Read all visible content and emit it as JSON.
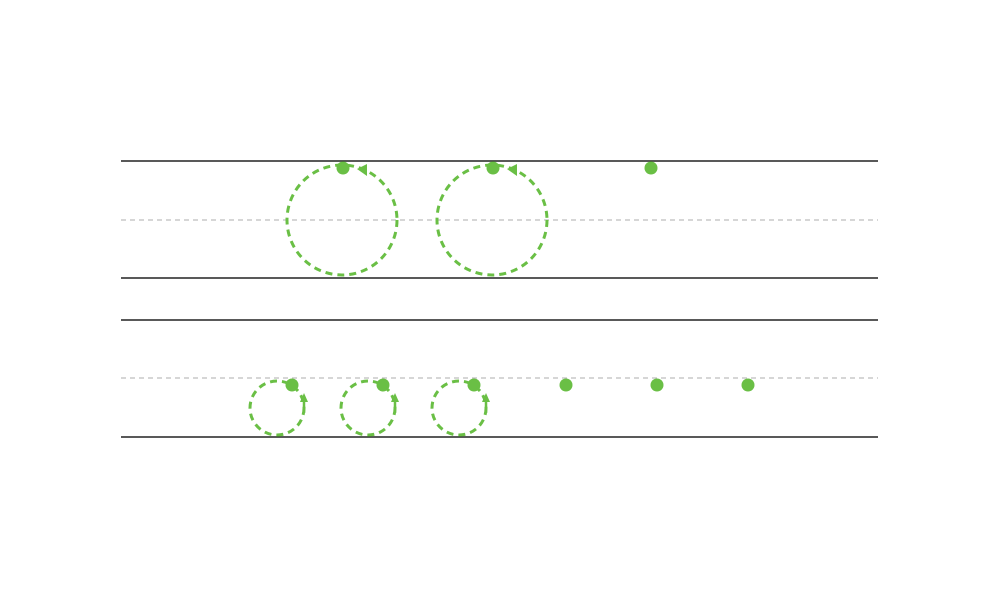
{
  "colors": {
    "accent": "#6abf45",
    "rule": "#222222",
    "midline": "#bdbdbd",
    "background": "#ffffff"
  },
  "rows": [
    {
      "name": "upper-row",
      "starts": [
        {
          "kind": "start-dot-with-circle-stroke",
          "circle_size": "large"
        },
        {
          "kind": "start-dot-with-circle-stroke",
          "circle_size": "large"
        },
        {
          "kind": "start-dot"
        }
      ]
    },
    {
      "name": "lower-row",
      "starts": [
        {
          "kind": "start-dot-with-circle-stroke",
          "circle_size": "small"
        },
        {
          "kind": "start-dot-with-circle-stroke",
          "circle_size": "small"
        },
        {
          "kind": "start-dot-with-circle-stroke",
          "circle_size": "small"
        },
        {
          "kind": "start-dot"
        },
        {
          "kind": "start-dot"
        },
        {
          "kind": "start-dot"
        }
      ]
    }
  ]
}
